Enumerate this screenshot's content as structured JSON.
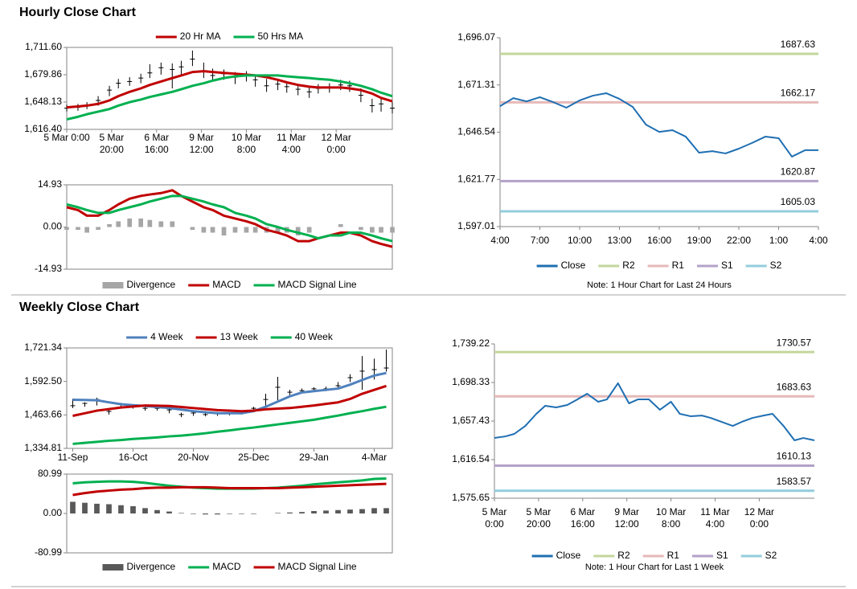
{
  "headings": [
    "Hourly Close Chart",
    "Weekly Close Chart"
  ],
  "chart_data": [
    {
      "type": "ohlc",
      "frame": "box",
      "legend": "top",
      "color": "#000000",
      "x": [
        0,
        5,
        9,
        14,
        19,
        23,
        28,
        33,
        37,
        42,
        47,
        51,
        56,
        61,
        65,
        70,
        75,
        80,
        84,
        89,
        94,
        98,
        103,
        108,
        112,
        117,
        122,
        126,
        131,
        136,
        140,
        145
      ],
      "xlim": [
        0,
        145
      ],
      "xticks": [
        {
          "value": 0,
          "label": [
            "5 Mar 0:00"
          ]
        },
        {
          "value": 20,
          "label": [
            "5 Mar",
            "20:00"
          ]
        },
        {
          "value": 40,
          "label": [
            "6 Mar",
            "16:00"
          ]
        },
        {
          "value": 60,
          "label": [
            "9 Mar",
            "12:00"
          ]
        },
        {
          "value": 80,
          "label": [
            "10 Mar",
            "8:00"
          ]
        },
        {
          "value": 100,
          "label": [
            "11 Mar",
            "4:00"
          ]
        },
        {
          "value": 120,
          "label": [
            "12 Mar",
            "0:00"
          ]
        }
      ],
      "ylim": [
        1616.4,
        1711.6
      ],
      "yticks": [
        {
          "value": 1616.4,
          "label": "1,616.40"
        },
        {
          "value": 1648.13,
          "label": "1,648.13"
        },
        {
          "value": 1679.86,
          "label": "1,679.86"
        },
        {
          "value": 1711.6,
          "label": "1,711.60"
        }
      ],
      "high": [
        1645,
        1646,
        1648,
        1655,
        1667,
        1675,
        1677,
        1681,
        1692,
        1694,
        1693,
        1696,
        1708,
        1694,
        1687,
        1686,
        1683,
        1684,
        1680,
        1675,
        1675,
        1672,
        1669,
        1667,
        1669,
        1670,
        1674,
        1673,
        1664,
        1652,
        1652,
        1648
      ],
      "low": [
        1637,
        1638,
        1640,
        1644,
        1655,
        1664,
        1667,
        1670,
        1676,
        1680,
        1664,
        1680,
        1690,
        1676,
        1672,
        1674,
        1669,
        1672,
        1666,
        1660,
        1662,
        1659,
        1656,
        1653,
        1658,
        1659,
        1662,
        1660,
        1648,
        1636,
        1637,
        1635
      ],
      "close": [
        1641,
        1642,
        1644,
        1650,
        1662,
        1670,
        1672,
        1676,
        1682,
        1688,
        1686,
        1689,
        1698,
        1684,
        1679,
        1681,
        1677,
        1679,
        1674,
        1667,
        1669,
        1666,
        1663,
        1660,
        1664,
        1665,
        1668,
        1667,
        1656,
        1644,
        1646,
        1641
      ],
      "series": [
        {
          "name": "20 Hr MA",
          "color": "#c00000",
          "values": [
            1642,
            1643,
            1644,
            1646,
            1650,
            1655,
            1660,
            1664,
            1668,
            1672,
            1676,
            1679,
            1683,
            1684,
            1683,
            1682,
            1681,
            1680,
            1679,
            1677,
            1674,
            1671,
            1668,
            1666,
            1665,
            1665,
            1665,
            1664,
            1662,
            1658,
            1653,
            1649
          ]
        },
        {
          "name": "50 Hrs MA",
          "color": "#00b050",
          "values": [
            1628,
            1631,
            1634,
            1637,
            1640,
            1644,
            1648,
            1651,
            1654,
            1657,
            1660,
            1663,
            1667,
            1670,
            1673,
            1676,
            1678,
            1679,
            1679,
            1679,
            1679,
            1678,
            1677,
            1676,
            1675,
            1674,
            1672,
            1670,
            1667,
            1663,
            1659,
            1655
          ]
        }
      ]
    },
    {
      "type": "macd",
      "frame": "box",
      "legend": "bottom",
      "x": [
        0,
        5,
        9,
        14,
        19,
        23,
        28,
        33,
        37,
        42,
        47,
        51,
        56,
        61,
        65,
        70,
        75,
        80,
        84,
        89,
        94,
        98,
        103,
        108,
        112,
        117,
        122,
        126,
        131,
        136,
        140,
        145
      ],
      "xlim": [
        0,
        145
      ],
      "ylim": [
        -14.93,
        14.93
      ],
      "yticks": [
        14.93,
        {
          "value": 0,
          "label": "0.00"
        },
        -14.93
      ],
      "series": [
        {
          "name": "Divergence",
          "kind": "bar",
          "color": "#a6a6a6",
          "values": [
            -1,
            -1,
            -2,
            -1,
            1,
            2,
            3,
            3,
            2.5,
            2,
            2,
            0,
            -1,
            -2,
            -2,
            -3,
            -2,
            -2,
            -2,
            -2,
            -2,
            -2,
            -3,
            -2,
            0,
            0,
            1,
            0,
            -1,
            -2,
            -2,
            -2
          ]
        },
        {
          "name": "MACD",
          "color": "#c00000",
          "values": [
            7,
            6,
            4,
            4,
            6,
            8,
            10,
            11,
            11.5,
            12,
            13,
            11,
            9,
            7,
            6,
            4,
            3,
            2,
            1,
            -1,
            -2,
            -3,
            -5,
            -5,
            -4,
            -3,
            -2,
            -2,
            -3,
            -5,
            -6,
            -7
          ]
        },
        {
          "name": "MACD Signal Line",
          "color": "#00b050",
          "values": [
            8,
            7,
            6,
            5,
            5,
            6,
            7,
            8,
            9,
            10,
            11,
            11,
            10,
            9,
            8,
            7,
            5,
            4,
            3,
            1,
            0,
            -1,
            -2,
            -3,
            -4,
            -3,
            -3,
            -2,
            -2,
            -3,
            -4,
            -5
          ]
        }
      ]
    },
    {
      "type": "line",
      "frame": "axes",
      "legend": "bottom",
      "categories": [
        "4:00",
        null,
        null,
        "7:00",
        null,
        null,
        "10:00",
        null,
        null,
        "13:00",
        null,
        null,
        "16:00",
        null,
        null,
        "19:00",
        null,
        null,
        "22:00",
        null,
        null,
        "1:00",
        null,
        null,
        "4:00"
      ],
      "ylim": [
        1597.01,
        1696.07
      ],
      "yticks": [
        {
          "value": 1597.01,
          "label": "1,597.01"
        },
        {
          "value": 1621.77,
          "label": "1,621.77"
        },
        {
          "value": 1646.54,
          "label": "1,646.54"
        },
        {
          "value": 1671.31,
          "label": "1,671.31"
        },
        {
          "value": 1696.07,
          "label": "1,696.07"
        }
      ],
      "series": [
        {
          "name": "Close",
          "color": "#1f6fb2",
          "values": [
            1660.2,
            1664.4,
            1662.7,
            1664.9,
            1662.3,
            1659.4,
            1663.2,
            1665.7,
            1667.0,
            1664.0,
            1659.8,
            1650.5,
            1646.7,
            1647.6,
            1644.2,
            1635.8,
            1636.6,
            1635.4,
            1637.9,
            1640.9,
            1644.2,
            1643.4,
            1633.7,
            1637.1,
            1637.1
          ]
        }
      ],
      "levels": [
        {
          "name": "R2",
          "value": 1687.63,
          "color": "#c3d69b"
        },
        {
          "name": "R1",
          "value": 1662.17,
          "color": "#e6b9b8"
        },
        {
          "name": "S1",
          "value": 1620.87,
          "color": "#b3a2c7"
        },
        {
          "name": "S2",
          "value": 1605.03,
          "color": "#93cddd"
        }
      ],
      "note": "Note: 1 Hour Chart for Last 24 Hours"
    },
    {
      "type": "ohlc",
      "frame": "box",
      "legend": "top",
      "color": "#000000",
      "categories": [
        "11-Sep",
        null,
        null,
        null,
        null,
        "16-Oct",
        null,
        null,
        null,
        null,
        "20-Nov",
        null,
        null,
        null,
        null,
        "25-Dec",
        null,
        null,
        null,
        null,
        "29-Jan",
        null,
        null,
        null,
        null,
        "4-Mar",
        null
      ],
      "ylim": [
        1334.81,
        1721.34
      ],
      "yticks": [
        {
          "value": 1334.81,
          "label": "1,334.81"
        },
        {
          "value": 1463.66,
          "label": "1,463.66"
        },
        {
          "value": 1592.5,
          "label": "1,592.50"
        },
        {
          "value": 1721.34,
          "label": "1,721.34"
        }
      ],
      "high": [
        1525,
        1512,
        1530,
        1490,
        1510,
        1500,
        1495,
        1495,
        1490,
        1472,
        1478,
        1472,
        1475,
        1472,
        1480,
        1495,
        1545,
        1610,
        1560,
        1565,
        1570,
        1572,
        1590,
        1620,
        1690,
        1680,
        1715
      ],
      "low": [
        1490,
        1495,
        1500,
        1465,
        1495,
        1488,
        1480,
        1480,
        1470,
        1455,
        1460,
        1458,
        1460,
        1462,
        1465,
        1478,
        1500,
        1520,
        1540,
        1548,
        1555,
        1555,
        1565,
        1590,
        1560,
        1600,
        1630
      ],
      "close": [
        1499,
        1508,
        1523,
        1477,
        1505,
        1496,
        1489,
        1489,
        1483,
        1465,
        1471,
        1465,
        1468,
        1468,
        1474,
        1489,
        1523,
        1570,
        1551,
        1557,
        1564,
        1564,
        1576,
        1607,
        1632,
        1638,
        1644
      ],
      "series": [
        {
          "name": "4 Week",
          "color": "#4f81bd",
          "values": [
            1522,
            1521,
            1520,
            1512,
            1505,
            1501,
            1498,
            1494,
            1490,
            1484,
            1478,
            1474,
            1470,
            1470,
            1470,
            1478,
            1495,
            1515,
            1535,
            1550,
            1555,
            1560,
            1565,
            1580,
            1598,
            1615,
            1625
          ]
        },
        {
          "name": "13 Week",
          "color": "#c00000",
          "values": [
            1460,
            1470,
            1480,
            1486,
            1492,
            1496,
            1500,
            1499,
            1498,
            1494,
            1490,
            1486,
            1482,
            1480,
            1478,
            1480,
            1485,
            1488,
            1490,
            1495,
            1500,
            1506,
            1512,
            1525,
            1545,
            1560,
            1575
          ]
        },
        {
          "name": "40 Week",
          "color": "#00b050",
          "values": [
            1352,
            1356,
            1360,
            1364,
            1367,
            1371,
            1374,
            1377,
            1381,
            1384,
            1388,
            1393,
            1399,
            1404,
            1410,
            1415,
            1421,
            1427,
            1433,
            1439,
            1445,
            1453,
            1461,
            1470,
            1478,
            1487,
            1495
          ]
        }
      ]
    },
    {
      "type": "macd",
      "frame": "box",
      "legend": "bottom",
      "ylim": [
        -80.99,
        80.99
      ],
      "yticks": [
        80.99,
        {
          "value": 0,
          "label": "0.00"
        },
        -80.99
      ],
      "series": [
        {
          "name": "Divergence",
          "kind": "bar",
          "color": "#595959",
          "values": [
            24,
            22,
            20,
            19,
            17,
            15,
            11,
            7,
            4,
            1,
            -1,
            -2,
            -2,
            -1,
            -1,
            -1,
            0,
            1,
            2,
            3,
            5,
            6,
            7,
            8,
            9,
            11,
            11
          ]
        },
        {
          "name": "MACD",
          "color": "#00b050",
          "values": [
            62,
            64,
            65,
            66,
            66,
            65,
            63,
            60,
            57,
            55,
            53,
            52,
            51,
            51,
            51,
            51,
            52,
            53,
            55,
            57,
            60,
            62,
            64,
            66,
            68,
            71,
            72
          ]
        },
        {
          "name": "MACD Signal Line",
          "color": "#c00000",
          "values": [
            38,
            42,
            45,
            47,
            49,
            50,
            52,
            53,
            53,
            54,
            54,
            54,
            53,
            52,
            52,
            52,
            52,
            52,
            53,
            54,
            55,
            56,
            57,
            58,
            59,
            60,
            61
          ]
        }
      ]
    },
    {
      "type": "line",
      "frame": "axes",
      "legend": "bottom",
      "x": [
        0,
        5,
        9,
        14,
        19,
        23,
        28,
        33,
        37,
        42,
        47,
        51,
        56,
        61,
        65,
        70,
        75,
        80,
        84,
        89,
        94,
        98,
        103,
        108,
        112,
        117,
        122,
        126,
        131,
        136,
        140,
        145
      ],
      "xlim": [
        0,
        145
      ],
      "xticks": [
        {
          "value": 0,
          "label": [
            "5 Mar",
            "0:00"
          ]
        },
        {
          "value": 20,
          "label": [
            "5 Mar",
            "20:00"
          ]
        },
        {
          "value": 40,
          "label": [
            "6 Mar",
            "16:00"
          ]
        },
        {
          "value": 60,
          "label": [
            "9 Mar",
            "12:00"
          ]
        },
        {
          "value": 80,
          "label": [
            "10 Mar",
            "8:00"
          ]
        },
        {
          "value": 100,
          "label": [
            "11 Mar",
            "4:00"
          ]
        },
        {
          "value": 120,
          "label": [
            "12 Mar",
            "0:00"
          ]
        }
      ],
      "ylim": [
        1575.65,
        1739.22
      ],
      "yticks": [
        {
          "value": 1575.65,
          "label": "1,575.65"
        },
        {
          "value": 1616.54,
          "label": "1,616.54"
        },
        {
          "value": 1657.43,
          "label": "1,657.43"
        },
        {
          "value": 1698.33,
          "label": "1,698.33"
        },
        {
          "value": 1739.22,
          "label": "1,739.22"
        }
      ],
      "series": [
        {
          "name": "Close",
          "color": "#1f6fb2",
          "values": [
            1639.5,
            1641.2,
            1643.8,
            1652.3,
            1665.1,
            1673.6,
            1671.9,
            1674.5,
            1679.6,
            1686.4,
            1677.9,
            1680.4,
            1697.5,
            1676.2,
            1680.4,
            1680.4,
            1669.4,
            1677.9,
            1665.1,
            1662.5,
            1663.3,
            1660.8,
            1656.5,
            1652.3,
            1656.5,
            1660.8,
            1663.3,
            1665.1,
            1652.3,
            1637.0,
            1639.5,
            1637.0
          ]
        }
      ],
      "levels": [
        {
          "name": "R2",
          "value": 1730.57,
          "color": "#c3d69b"
        },
        {
          "name": "R1",
          "value": 1683.63,
          "color": "#e6b9b8"
        },
        {
          "name": "S1",
          "value": 1610.13,
          "color": "#b3a2c7"
        },
        {
          "name": "S2",
          "value": 1583.57,
          "color": "#93cddd"
        }
      ],
      "note": "Note: 1 Hour Chart for Last 1 Week"
    }
  ]
}
